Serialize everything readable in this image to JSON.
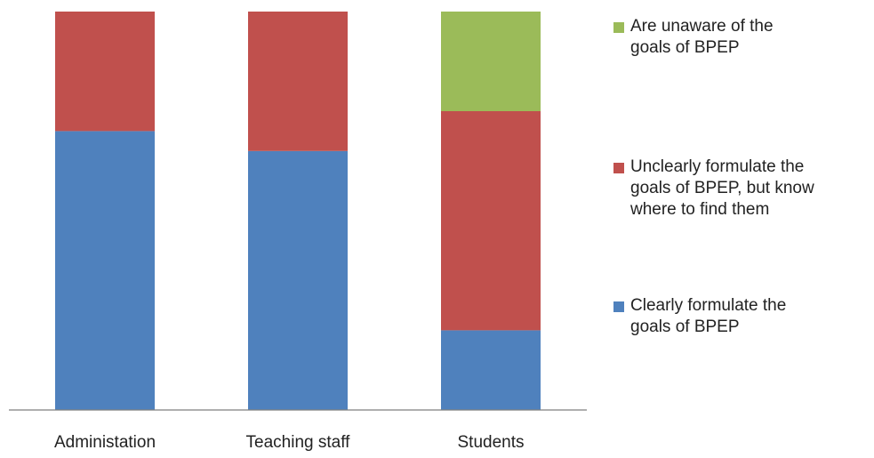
{
  "chart_data": {
    "type": "bar",
    "stacked": true,
    "normalized_percent": true,
    "categories": [
      "Administation",
      "Teaching staff",
      "Students"
    ],
    "series": [
      {
        "name": "Clearly formulate the\ngoals of  BPEP",
        "values": [
          70,
          65,
          20
        ],
        "color": "#4F81BD"
      },
      {
        "name": "Unclearly formulate the\ngoals of BPEP, but  know\nwhere to find them",
        "values": [
          30,
          35,
          55
        ],
        "color": "#C0504D"
      },
      {
        "name": "Are unaware of the\ngoals of BPEP",
        "values": [
          0,
          0,
          25
        ],
        "color": "#9BBB59"
      }
    ],
    "legend_order": [
      2,
      1,
      0
    ],
    "ylim": [
      0,
      100
    ],
    "grid": false,
    "legend_position": "right"
  }
}
